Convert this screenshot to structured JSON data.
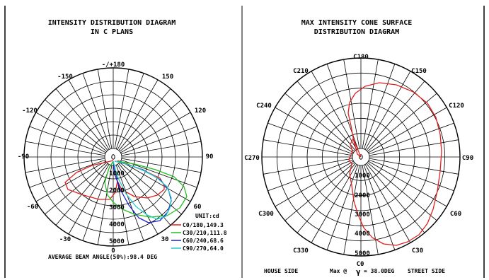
{
  "left_panel": {
    "title_line1": "INTENSITY DISTRIBUTION DIAGRAM",
    "title_line2": "IN C PLANS",
    "angle_labels": {
      "top": "-/+180",
      "ul": "-150",
      "ur": "150",
      "ul2": "-120",
      "ur2": "120",
      "left": "-90",
      "right": "90",
      "ll2": "-60",
      "lr2": "60",
      "ll": "-30",
      "lr": "30",
      "bottom": "0"
    },
    "radial_labels": [
      "1000",
      "2000",
      "3000",
      "4000",
      "5000"
    ],
    "unit_label": "UNIT:cd",
    "legend": [
      {
        "label": "C0/180,149.3",
        "color": "#e02020"
      },
      {
        "label": "C30/210,111.8",
        "color": "#20c020"
      },
      {
        "label": "C60/240,68.6",
        "color": "#1c1ccc"
      },
      {
        "label": "C90/270,64.0",
        "color": "#22cccc"
      }
    ],
    "footer": "AVERAGE BEAM ANGLE(50%):98.4 DEG"
  },
  "right_panel": {
    "title_line1": "MAX INTENSITY CONE SURFACE",
    "title_line2": "DISTRIBUTION DIAGRAM",
    "angle_labels": {
      "top": "C180",
      "ul": "C210",
      "ur": "C150",
      "ul2": "C240",
      "ur2": "C120",
      "left": "C270",
      "right": "C90",
      "ll2": "C300",
      "lr2": "C60",
      "ll": "C330",
      "lr": "C30",
      "bottom": "C0"
    },
    "radial_labels": [
      "1000",
      "2000",
      "3000",
      "4000",
      "5000"
    ],
    "curve_color": "#e02020",
    "footer_left": "HOUSE SIDE",
    "footer_mid_prefix": "Max @",
    "footer_gamma": "γ",
    "footer_mid_value": "= 38.0DEG",
    "footer_right": "STREET SIDE"
  },
  "colors": {
    "grid": "#000000",
    "background": "#ffffff"
  }
}
